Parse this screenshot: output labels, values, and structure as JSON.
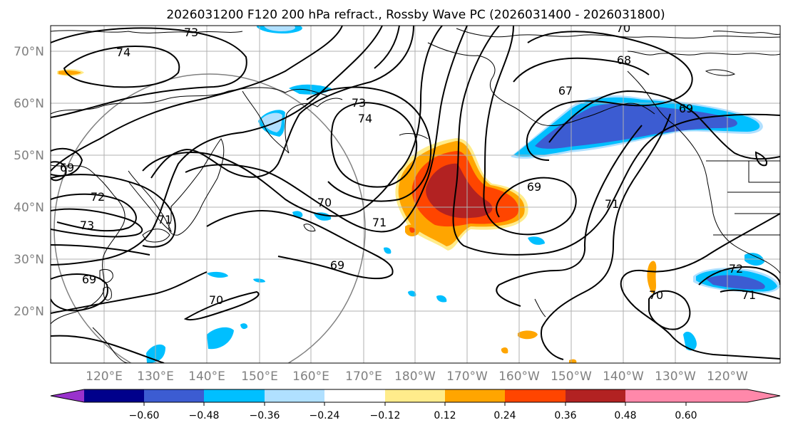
{
  "title": "2026031200 F120 200 hPa refract., Rossby Wave PC (2026031400 - 2026031800)",
  "map": {
    "lat_labels": [
      "70°N",
      "60°N",
      "50°N",
      "40°N",
      "30°N",
      "20°N"
    ],
    "lon_labels": [
      "120°E",
      "130°E",
      "140°E",
      "150°E",
      "160°E",
      "170°E",
      "180°W",
      "170°W",
      "160°W",
      "150°W",
      "140°W",
      "130°W",
      "120°W"
    ],
    "contour_labels": [
      "73",
      "74",
      "70",
      "68",
      "67",
      "69",
      "73",
      "74",
      "69",
      "72",
      "73",
      "71",
      "70",
      "71",
      "69",
      "71",
      "69",
      "69",
      "70",
      "72",
      "71",
      "70"
    ]
  },
  "colorbar": {
    "ticks": [
      "−0.60",
      "−0.48",
      "−0.36",
      "−0.24",
      "−0.12",
      "0.12",
      "0.24",
      "0.36",
      "0.48",
      "0.60"
    ],
    "colors": [
      "#9932cc",
      "#00008b",
      "#3c5cd2",
      "#00bfff",
      "#b0e0ff",
      "#ffffff",
      "#ffec8b",
      "#ffa500",
      "#ff4500",
      "#b22222",
      "#ff88aa"
    ]
  }
}
